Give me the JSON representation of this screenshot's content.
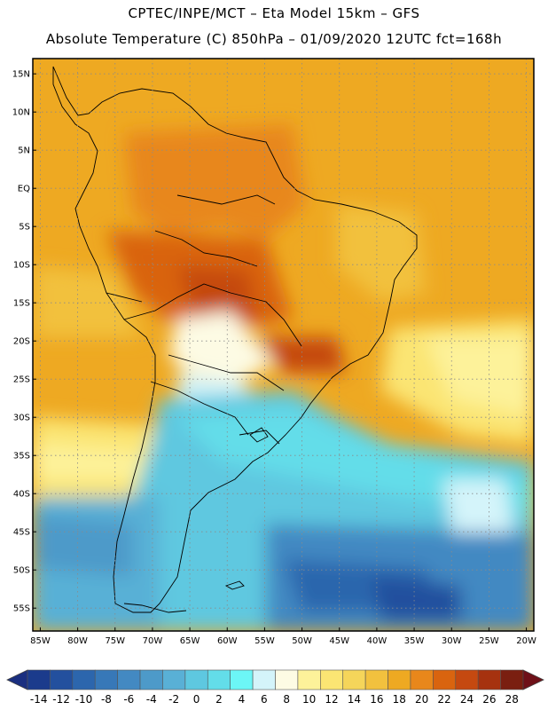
{
  "header": {
    "line1": "CPTEC/INPE/MCT  –  Eta Model 15km  –  GFS",
    "line2": "Absolute Temperature (C) 850hPa – 01/09/2020 12UTC fct=168h"
  },
  "map": {
    "lon_range": [
      -86,
      -19
    ],
    "lat_range": [
      -58,
      17
    ],
    "lat_ticks": [
      {
        "v": 15,
        "label": "15N"
      },
      {
        "v": 10,
        "label": "10N"
      },
      {
        "v": 5,
        "label": "5N"
      },
      {
        "v": 0,
        "label": "EQ"
      },
      {
        "v": -5,
        "label": "5S"
      },
      {
        "v": -10,
        "label": "10S"
      },
      {
        "v": -15,
        "label": "15S"
      },
      {
        "v": -20,
        "label": "20S"
      },
      {
        "v": -25,
        "label": "25S"
      },
      {
        "v": -30,
        "label": "30S"
      },
      {
        "v": -35,
        "label": "35S"
      },
      {
        "v": -40,
        "label": "40S"
      },
      {
        "v": -45,
        "label": "45S"
      },
      {
        "v": -50,
        "label": "50S"
      },
      {
        "v": -55,
        "label": "55S"
      }
    ],
    "lon_ticks": [
      {
        "v": -85,
        "label": "85W"
      },
      {
        "v": -80,
        "label": "80W"
      },
      {
        "v": -75,
        "label": "75W"
      },
      {
        "v": -70,
        "label": "70W"
      },
      {
        "v": -65,
        "label": "65W"
      },
      {
        "v": -60,
        "label": "60W"
      },
      {
        "v": -55,
        "label": "55W"
      },
      {
        "v": -50,
        "label": "50W"
      },
      {
        "v": -45,
        "label": "45W"
      },
      {
        "v": -40,
        "label": "40W"
      },
      {
        "v": -35,
        "label": "35W"
      },
      {
        "v": -30,
        "label": "30W"
      },
      {
        "v": -25,
        "label": "25W"
      },
      {
        "v": -20,
        "label": "20W"
      }
    ],
    "gridlines": true,
    "land_outline_color": "#000000"
  },
  "colorbar": {
    "labels": [
      "-14",
      "-12",
      "-10",
      "-8",
      "-6",
      "-4",
      "-2",
      "0",
      "2",
      "4",
      "6",
      "8",
      "10",
      "12",
      "14",
      "16",
      "18",
      "20",
      "22",
      "24",
      "26",
      "28"
    ],
    "colors": [
      "#1b3b8c",
      "#23509e",
      "#2c66ad",
      "#3778b8",
      "#4389c2",
      "#4d9ac9",
      "#59b0d6",
      "#5ec8e0",
      "#63dde9",
      "#6cf6f6",
      "#d4f4fa",
      "#fdfbe4",
      "#fdf29a",
      "#fbe573",
      "#f5d55a",
      "#f2c13e",
      "#eea922",
      "#e8871b",
      "#d9640f",
      "#c54910",
      "#a6320f",
      "#7a1f10"
    ],
    "under_color": "#1a2f80",
    "over_color": "#6e1018"
  }
}
